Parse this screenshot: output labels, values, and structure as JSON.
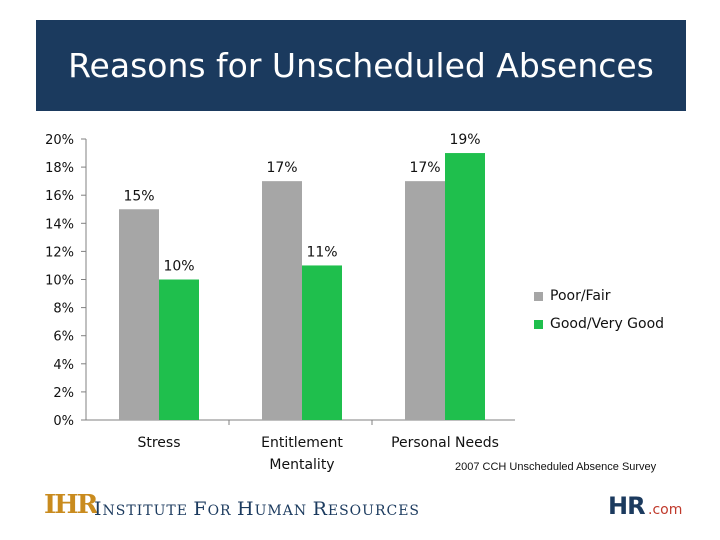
{
  "title": "Reasons for Unscheduled Absences",
  "source_note": "2007 CCH Unscheduled Absence Survey",
  "footer": {
    "logo_mark": "IHR",
    "org_name": "Institute For Human Resources",
    "org_name_parts": [
      "I",
      "NSTITUTE ",
      "F",
      "OR ",
      "H",
      "UMAN ",
      "R",
      "ESOURCES"
    ],
    "partner_logo": "HR.com"
  },
  "colors": {
    "title_band": "#1b3a5e",
    "poor_fair": "#a6a6a6",
    "good_very_good": "#1fbf4d"
  },
  "chart_data": {
    "type": "bar",
    "categories": [
      "Stress",
      "Entitlement Mentality",
      "Personal Needs"
    ],
    "category_lines": [
      [
        "Stress"
      ],
      [
        "Entitlement",
        "Mentality"
      ],
      [
        "Personal Needs"
      ]
    ],
    "series": [
      {
        "name": "Poor/Fair",
        "values": [
          15,
          17,
          17
        ],
        "labels": [
          "15%",
          "17%",
          "17%"
        ],
        "color": "#a6a6a6"
      },
      {
        "name": "Good/Very Good",
        "values": [
          10,
          11,
          19
        ],
        "labels": [
          "10%",
          "11%",
          "19%"
        ],
        "color": "#1fbf4d"
      }
    ],
    "ylim": [
      0,
      20
    ],
    "yticks": [
      0,
      2,
      4,
      6,
      8,
      10,
      12,
      14,
      16,
      18,
      20
    ],
    "ytick_labels": [
      "0%",
      "2%",
      "4%",
      "6%",
      "8%",
      "10%",
      "12%",
      "14%",
      "16%",
      "18%",
      "20%"
    ],
    "xlabel": "",
    "ylabel": "",
    "legend_position": "right",
    "grid": false
  }
}
